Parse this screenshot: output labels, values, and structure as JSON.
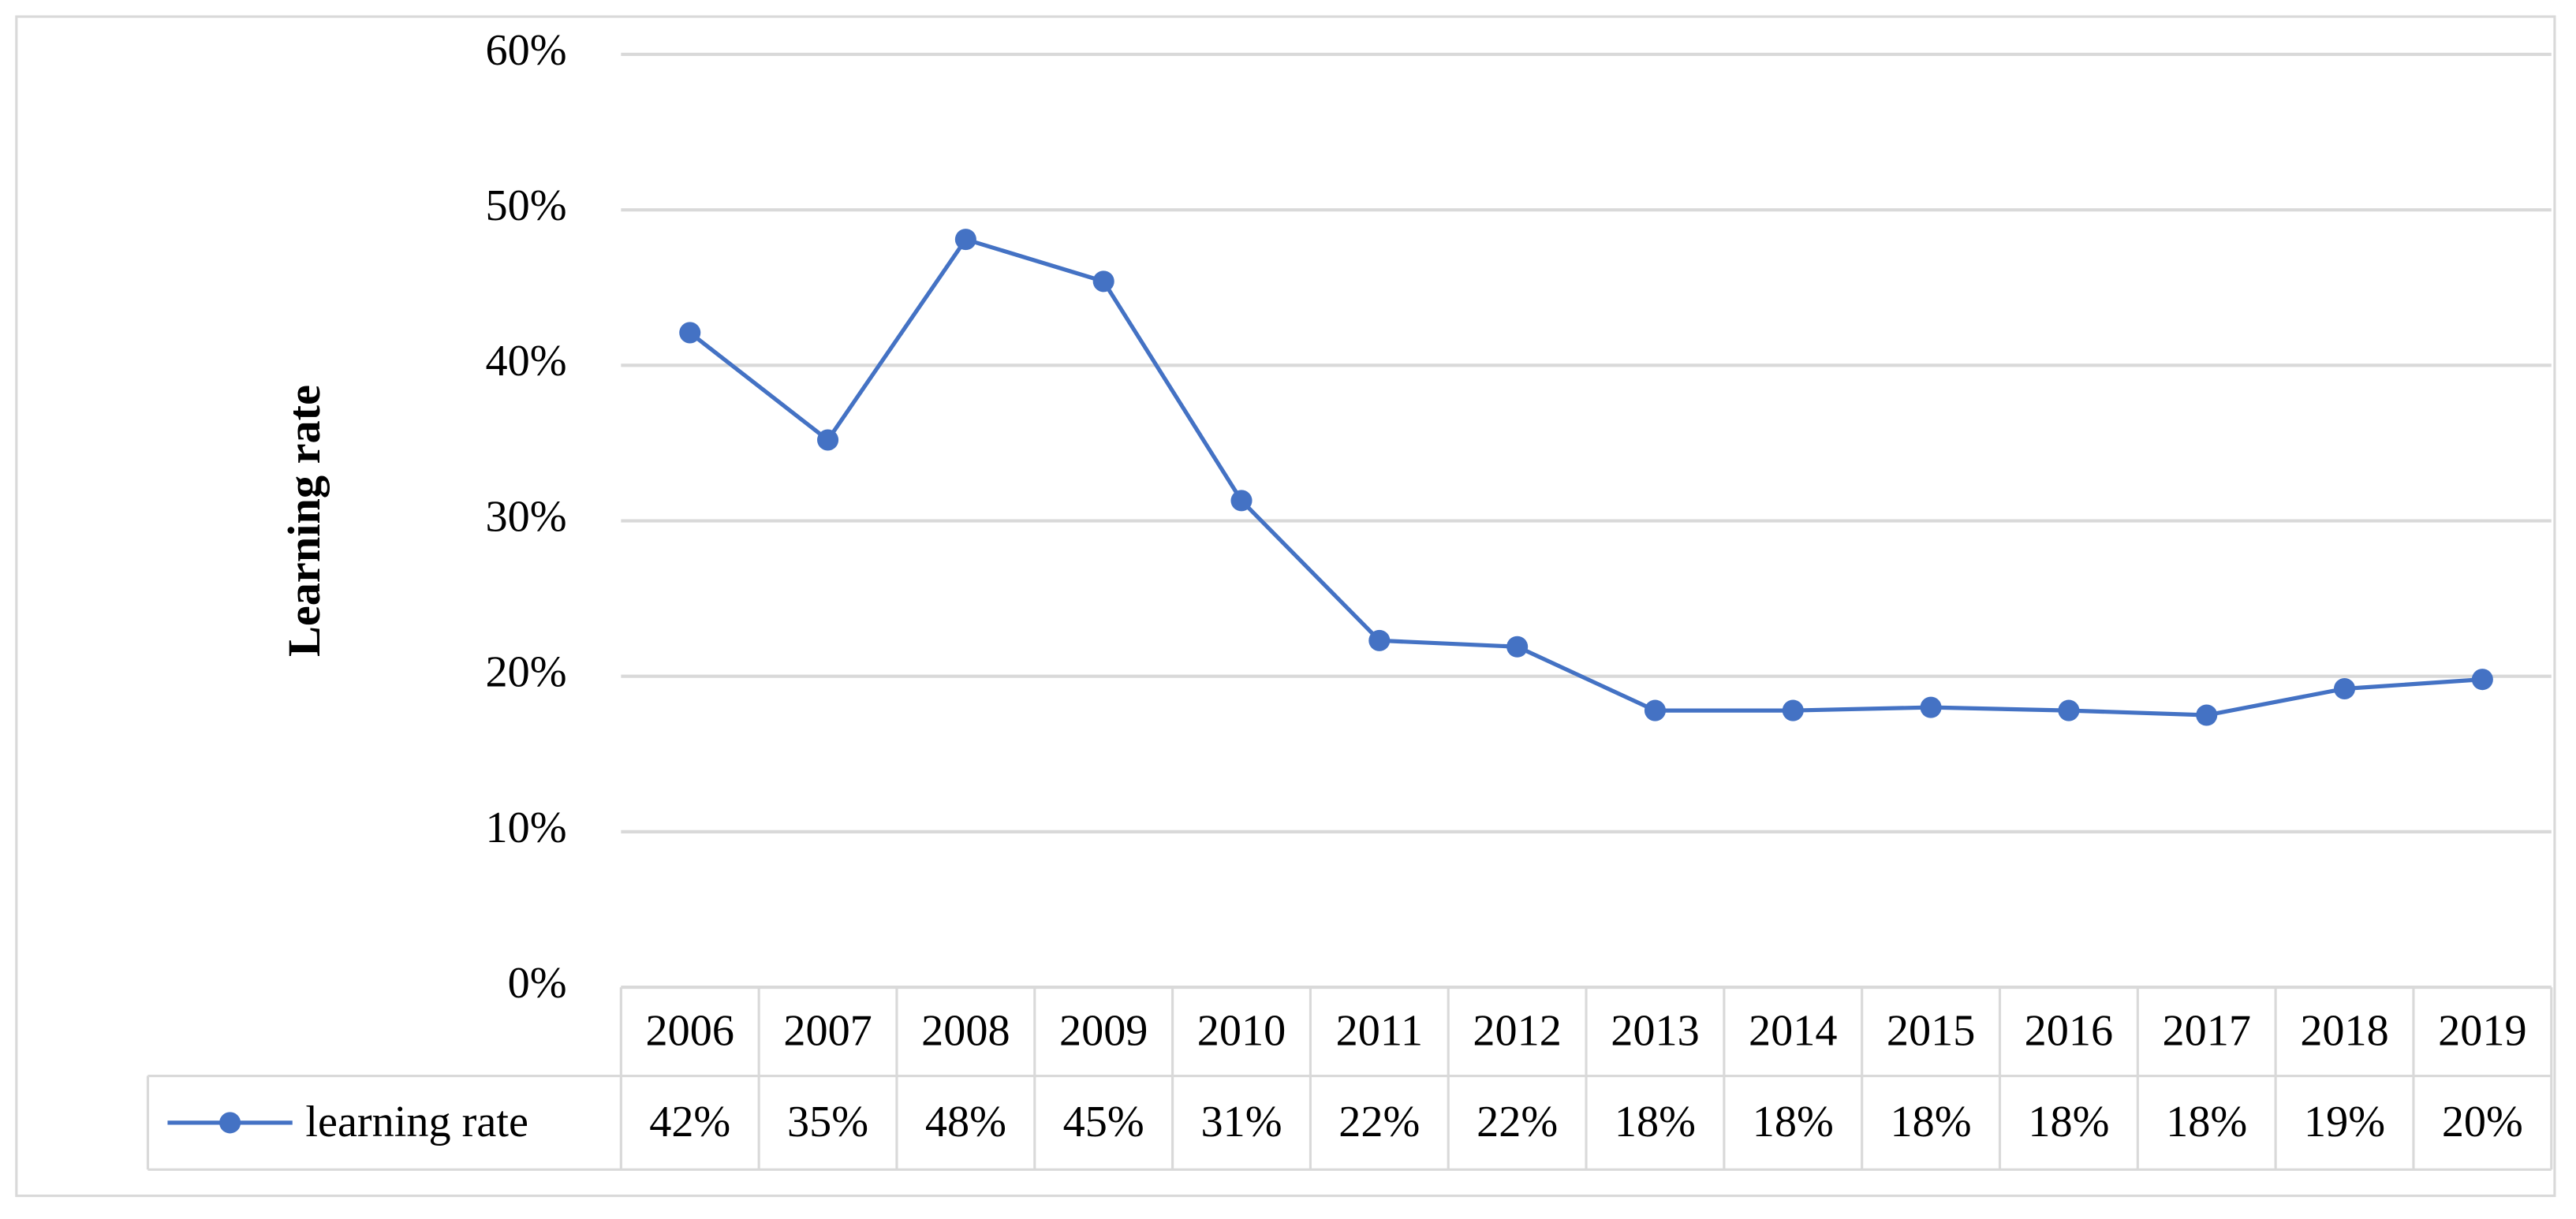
{
  "chart_data": {
    "type": "line",
    "y_label": "Learning rate",
    "categories": [
      "2006",
      "2007",
      "2008",
      "2009",
      "2010",
      "2011",
      "2012",
      "2013",
      "2014",
      "2015",
      "2016",
      "2017",
      "2018",
      "2019"
    ],
    "series": [
      {
        "name": "learning rate",
        "color": "#4472c4",
        "values": [
          42.1,
          35.2,
          48.1,
          45.4,
          31.3,
          22.3,
          21.9,
          17.8,
          17.8,
          18.0,
          17.8,
          17.5,
          19.2,
          19.8
        ],
        "value_labels": [
          "42%",
          "35%",
          "48%",
          "45%",
          "31%",
          "22%",
          "22%",
          "18%",
          "18%",
          "18%",
          "18%",
          "18%",
          "19%",
          "20%"
        ]
      }
    ],
    "ylim": [
      0,
      60
    ],
    "yticks": [
      {
        "value": 0,
        "label": "0%"
      },
      {
        "value": 10,
        "label": "10%"
      },
      {
        "value": 20,
        "label": "20%"
      },
      {
        "value": 30,
        "label": "30%"
      },
      {
        "value": 40,
        "label": "40%"
      },
      {
        "value": 50,
        "label": "50%"
      },
      {
        "value": 60,
        "label": "60%"
      }
    ],
    "grid": true
  }
}
